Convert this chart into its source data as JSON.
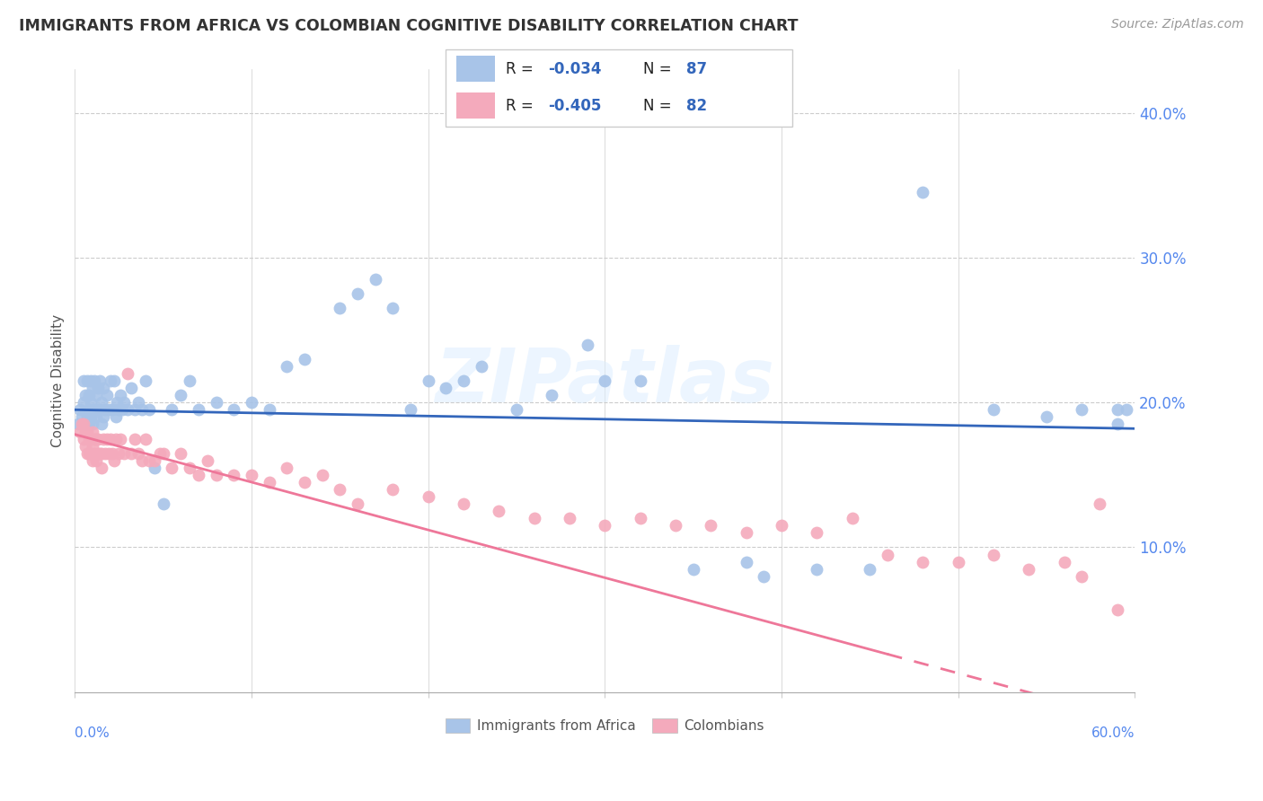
{
  "title": "IMMIGRANTS FROM AFRICA VS COLOMBIAN COGNITIVE DISABILITY CORRELATION CHART",
  "source": "Source: ZipAtlas.com",
  "ylabel": "Cognitive Disability",
  "legend_label_africa": "Immigrants from Africa",
  "legend_label_colombia": "Colombians",
  "xmin": 0.0,
  "xmax": 0.6,
  "ymin": 0.0,
  "ymax": 0.43,
  "africa_color": "#A8C4E8",
  "colombia_color": "#F4AABC",
  "africa_line_color": "#3366BB",
  "colombia_line_color": "#EE7799",
  "africa_R": -0.034,
  "africa_N": 87,
  "colombia_R": -0.405,
  "colombia_N": 82,
  "watermark": "ZIPatlas",
  "africa_x": [
    0.002,
    0.003,
    0.004,
    0.005,
    0.005,
    0.006,
    0.006,
    0.007,
    0.007,
    0.008,
    0.008,
    0.008,
    0.009,
    0.009,
    0.009,
    0.01,
    0.01,
    0.01,
    0.011,
    0.011,
    0.012,
    0.012,
    0.013,
    0.013,
    0.014,
    0.014,
    0.015,
    0.015,
    0.016,
    0.016,
    0.017,
    0.018,
    0.019,
    0.02,
    0.021,
    0.022,
    0.023,
    0.024,
    0.025,
    0.026,
    0.027,
    0.028,
    0.03,
    0.032,
    0.034,
    0.036,
    0.038,
    0.04,
    0.042,
    0.045,
    0.05,
    0.055,
    0.06,
    0.065,
    0.07,
    0.08,
    0.09,
    0.1,
    0.11,
    0.12,
    0.13,
    0.15,
    0.16,
    0.17,
    0.18,
    0.19,
    0.2,
    0.21,
    0.22,
    0.23,
    0.25,
    0.27,
    0.29,
    0.3,
    0.32,
    0.35,
    0.38,
    0.39,
    0.42,
    0.45,
    0.48,
    0.52,
    0.55,
    0.57,
    0.59,
    0.59,
    0.595
  ],
  "africa_y": [
    0.185,
    0.195,
    0.19,
    0.2,
    0.215,
    0.185,
    0.205,
    0.19,
    0.215,
    0.185,
    0.195,
    0.205,
    0.19,
    0.2,
    0.215,
    0.185,
    0.195,
    0.21,
    0.195,
    0.215,
    0.19,
    0.205,
    0.195,
    0.21,
    0.195,
    0.215,
    0.185,
    0.2,
    0.19,
    0.21,
    0.195,
    0.205,
    0.195,
    0.215,
    0.195,
    0.215,
    0.19,
    0.2,
    0.195,
    0.205,
    0.195,
    0.2,
    0.195,
    0.21,
    0.195,
    0.2,
    0.195,
    0.215,
    0.195,
    0.155,
    0.13,
    0.195,
    0.205,
    0.215,
    0.195,
    0.2,
    0.195,
    0.2,
    0.195,
    0.225,
    0.23,
    0.265,
    0.275,
    0.285,
    0.265,
    0.195,
    0.215,
    0.21,
    0.215,
    0.225,
    0.195,
    0.205,
    0.24,
    0.215,
    0.215,
    0.085,
    0.09,
    0.08,
    0.085,
    0.085,
    0.345,
    0.195,
    0.19,
    0.195,
    0.195,
    0.185,
    0.195
  ],
  "colombia_x": [
    0.003,
    0.004,
    0.005,
    0.005,
    0.006,
    0.006,
    0.007,
    0.007,
    0.008,
    0.008,
    0.009,
    0.009,
    0.01,
    0.01,
    0.01,
    0.011,
    0.011,
    0.012,
    0.012,
    0.013,
    0.013,
    0.014,
    0.015,
    0.015,
    0.016,
    0.017,
    0.018,
    0.019,
    0.02,
    0.021,
    0.022,
    0.023,
    0.025,
    0.026,
    0.028,
    0.03,
    0.032,
    0.034,
    0.036,
    0.038,
    0.04,
    0.042,
    0.045,
    0.048,
    0.05,
    0.055,
    0.06,
    0.065,
    0.07,
    0.075,
    0.08,
    0.09,
    0.1,
    0.11,
    0.12,
    0.13,
    0.14,
    0.15,
    0.16,
    0.18,
    0.2,
    0.22,
    0.24,
    0.26,
    0.28,
    0.3,
    0.32,
    0.34,
    0.36,
    0.38,
    0.4,
    0.42,
    0.44,
    0.46,
    0.48,
    0.5,
    0.52,
    0.54,
    0.56,
    0.57,
    0.58,
    0.59
  ],
  "colombia_y": [
    0.18,
    0.185,
    0.175,
    0.185,
    0.17,
    0.18,
    0.165,
    0.18,
    0.165,
    0.175,
    0.165,
    0.175,
    0.16,
    0.17,
    0.18,
    0.165,
    0.175,
    0.16,
    0.175,
    0.165,
    0.175,
    0.165,
    0.155,
    0.165,
    0.175,
    0.165,
    0.175,
    0.165,
    0.175,
    0.165,
    0.16,
    0.175,
    0.165,
    0.175,
    0.165,
    0.22,
    0.165,
    0.175,
    0.165,
    0.16,
    0.175,
    0.16,
    0.16,
    0.165,
    0.165,
    0.155,
    0.165,
    0.155,
    0.15,
    0.16,
    0.15,
    0.15,
    0.15,
    0.145,
    0.155,
    0.145,
    0.15,
    0.14,
    0.13,
    0.14,
    0.135,
    0.13,
    0.125,
    0.12,
    0.12,
    0.115,
    0.12,
    0.115,
    0.115,
    0.11,
    0.115,
    0.11,
    0.12,
    0.095,
    0.09,
    0.09,
    0.095,
    0.085,
    0.09,
    0.08,
    0.13,
    0.057
  ]
}
